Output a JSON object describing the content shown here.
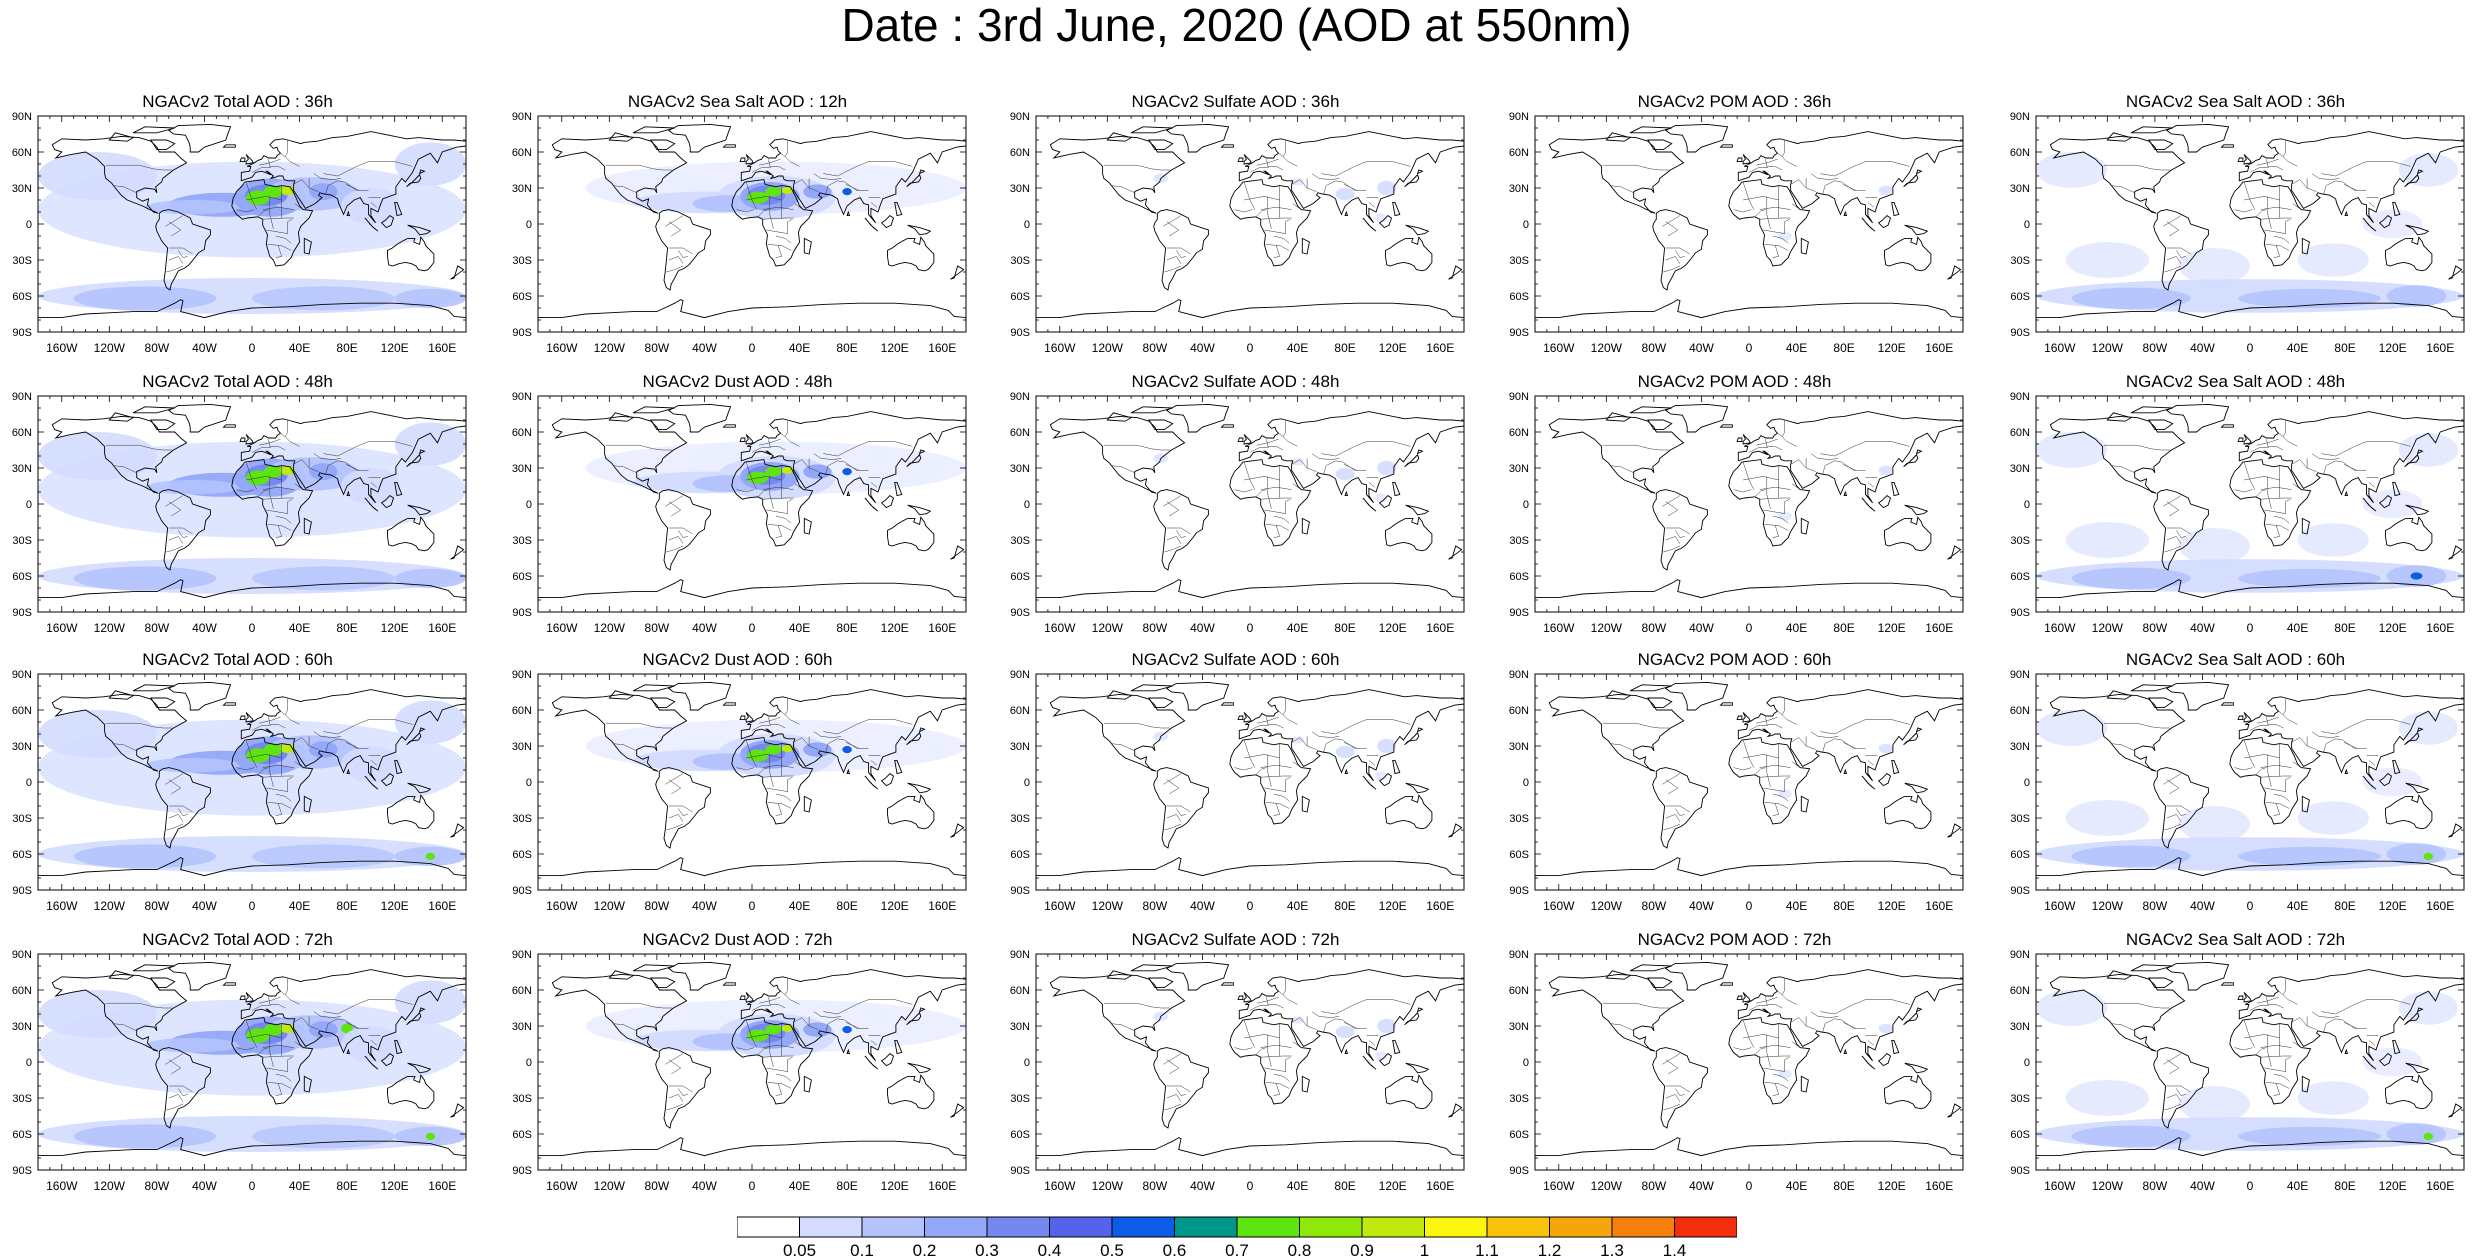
{
  "title": "Date : 3rd June, 2020 (AOD at 550nm)",
  "panels": [
    [
      "NGACv2 Total AOD : 36h",
      "NGACv2 Sea Salt  AOD : 12h",
      "NGACv2 Sulfate AOD : 36h",
      "NGACv2 POM AOD : 36h",
      "NGACv2 Sea Salt AOD : 36h"
    ],
    [
      "NGACv2 Total AOD : 48h",
      "NGACv2 Dust AOD : 48h",
      "NGACv2 Sulfate AOD : 48h",
      "NGACv2 POM AOD : 48h",
      "NGACv2 Sea Salt AOD : 48h"
    ],
    [
      "NGACv2 Total AOD : 60h",
      "NGACv2 Dust AOD : 60h",
      "NGACv2 Sulfate AOD : 60h",
      "NGACv2 POM AOD : 60h",
      "NGACv2 Sea Salt AOD : 60h"
    ],
    [
      "NGACv2 Total AOD : 72h",
      "NGACv2 Dust AOD : 72h",
      "NGACv2 Sulfate AOD : 72h",
      "NGACv2 POM AOD : 72h",
      "NGACv2 Sea Salt  AOD : 72h"
    ]
  ],
  "lat_labels": [
    "90N",
    "60N",
    "30N",
    "0",
    "30S",
    "60S",
    "90S"
  ],
  "lon_labels": [
    "160W",
    "120W",
    "80W",
    "40W",
    "0",
    "40E",
    "80E",
    "120E",
    "160E"
  ],
  "colorbar": {
    "labels": [
      "0.05",
      "0.1",
      "0.2",
      "0.3",
      "0.4",
      "0.5",
      "0.6",
      "0.7",
      "0.8",
      "0.9",
      "1",
      "1.1",
      "1.2",
      "1.3",
      "1.4"
    ],
    "colors": [
      "#ffffff",
      "#d3dcff",
      "#b4c3fd",
      "#94a8f9",
      "#7588f2",
      "#5563ea",
      "#0c5ce8",
      "#00958b",
      "#5ee40f",
      "#8fe807",
      "#c0ea0e",
      "#fbf60c",
      "#f7c30b",
      "#f5a60c",
      "#f6800d",
      "#f42e0c"
    ]
  }
}
